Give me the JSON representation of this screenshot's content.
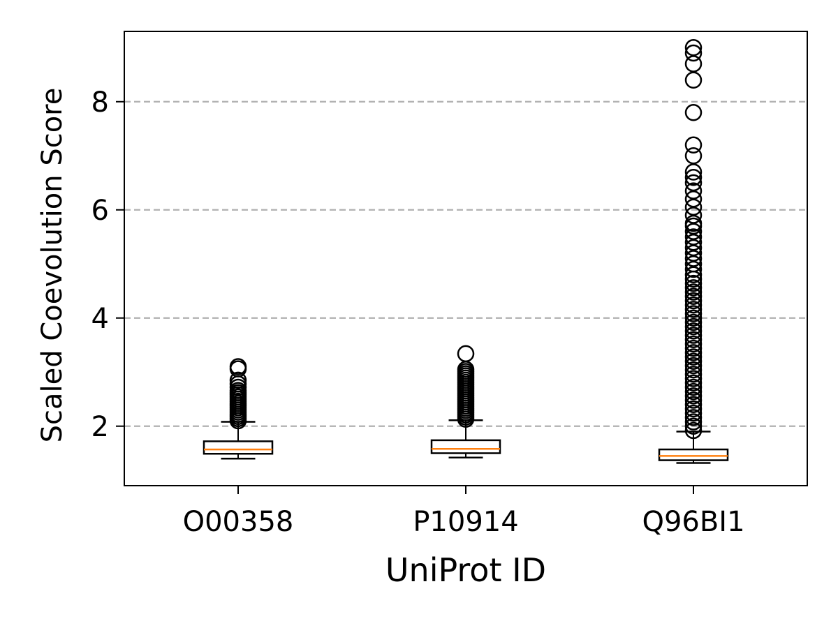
{
  "chart_data": {
    "type": "box",
    "title": "",
    "xlabel": "UniProt ID",
    "ylabel": "Scaled Coevolution Score",
    "ylim": [
      0.9,
      9.3
    ],
    "yticks": [
      2,
      4,
      6,
      8
    ],
    "grid": {
      "axis": "y",
      "style": "dashed",
      "color": "#b0b0b0"
    },
    "colors": {
      "box": "#000000",
      "median": "#ff7f0e",
      "grid": "#b0b0b0"
    },
    "categories": [
      "O00358",
      "P10914",
      "Q96BI1"
    ],
    "boxes": [
      {
        "label": "O00358",
        "whisker_low": 1.4,
        "q1": 1.49,
        "median": 1.57,
        "q3": 1.72,
        "whisker_high": 2.08,
        "outliers": [
          2.1,
          2.14,
          2.18,
          2.22,
          2.26,
          2.3,
          2.34,
          2.38,
          2.42,
          2.46,
          2.5,
          2.54,
          2.58,
          2.62,
          2.66,
          2.72,
          2.78,
          2.85,
          3.06,
          3.1
        ]
      },
      {
        "label": "P10914",
        "whisker_low": 1.42,
        "q1": 1.5,
        "median": 1.58,
        "q3": 1.74,
        "whisker_high": 2.11,
        "outliers": [
          2.13,
          2.17,
          2.21,
          2.25,
          2.29,
          2.33,
          2.37,
          2.41,
          2.45,
          2.49,
          2.53,
          2.57,
          2.61,
          2.65,
          2.69,
          2.73,
          2.77,
          2.81,
          2.85,
          2.89,
          2.93,
          2.97,
          3.01,
          3.05,
          3.34
        ]
      },
      {
        "label": "Q96BI1",
        "whisker_low": 1.32,
        "q1": 1.37,
        "median": 1.45,
        "q3": 1.57,
        "whisker_high": 1.9,
        "outliers": [
          1.92,
          2.0,
          2.08,
          2.16,
          2.24,
          2.32,
          2.4,
          2.48,
          2.56,
          2.64,
          2.72,
          2.8,
          2.88,
          2.96,
          3.04,
          3.12,
          3.2,
          3.28,
          3.36,
          3.44,
          3.52,
          3.6,
          3.68,
          3.76,
          3.84,
          3.92,
          4.0,
          4.08,
          4.16,
          4.24,
          4.32,
          4.4,
          4.48,
          4.56,
          4.64,
          4.72,
          4.8,
          4.9,
          5.0,
          5.1,
          5.2,
          5.3,
          5.4,
          5.5,
          5.6,
          5.7,
          5.75,
          5.9,
          6.05,
          6.2,
          6.35,
          6.5,
          6.6,
          6.7,
          7.0,
          7.2,
          7.8,
          8.4,
          8.7,
          8.9,
          9.0
        ]
      }
    ]
  }
}
